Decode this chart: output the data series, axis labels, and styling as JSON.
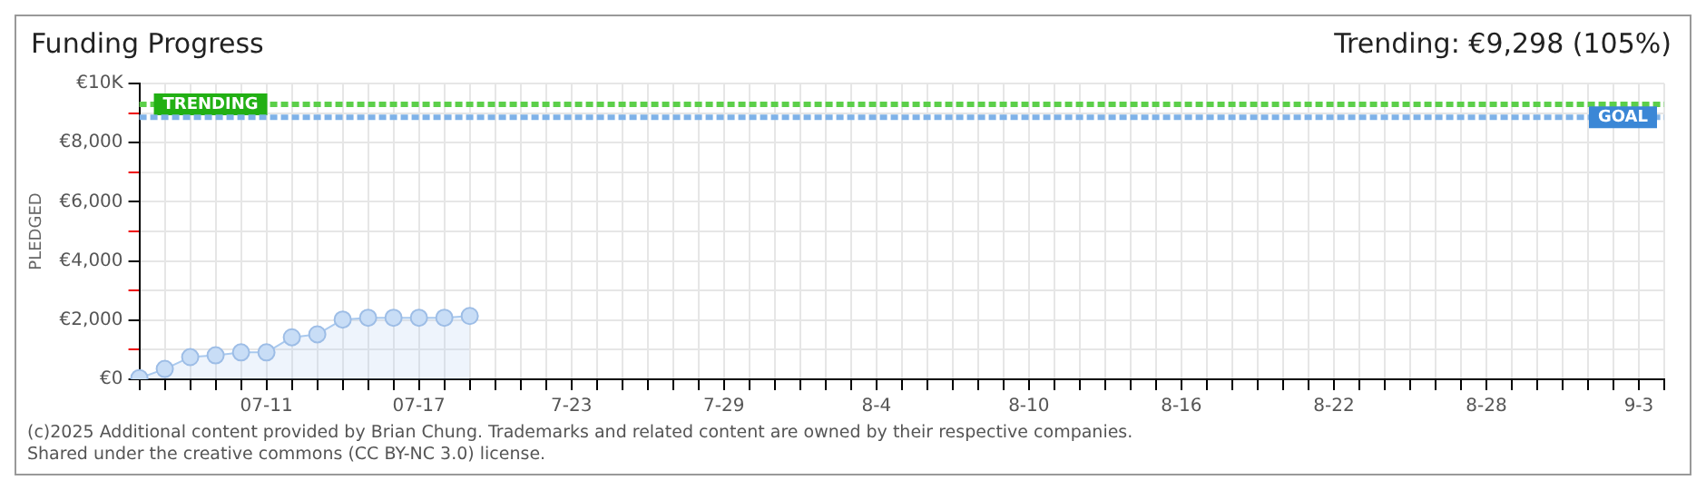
{
  "chart_data": {
    "type": "area",
    "title": "Funding Progress",
    "ylabel": "PLEDGED",
    "annotations": [
      "Trending: €9,298 (105%)",
      "(c)2025 Additional content provided by Brian Chung. Trademarks and related content are owned by their respective companies.",
      "Shared under the creative commons (CC BY-NC 3.0) license."
    ],
    "categories": [
      null,
      null,
      null,
      null,
      null,
      "07-11",
      null,
      null,
      null,
      null,
      null,
      "07-17",
      null,
      null,
      null,
      null,
      null,
      "7-23",
      null,
      null,
      null,
      null,
      null,
      "7-29",
      null,
      null,
      null,
      null,
      null,
      "8-4",
      null,
      null,
      null,
      null,
      null,
      "8-10",
      null,
      null,
      null,
      null,
      null,
      "8-16",
      null,
      null,
      null,
      null,
      null,
      "8-22",
      null,
      null,
      null,
      null,
      null,
      "8-28",
      null,
      null,
      null,
      null,
      null,
      "9-3",
      null
    ],
    "series": [
      {
        "color": "#a9c9ee",
        "values": [
          40,
          350,
          750,
          810,
          910,
          910,
          1420,
          1520,
          2020,
          2080,
          2080,
          2080,
          2080,
          2140,
          null,
          null,
          null,
          null,
          null,
          null,
          null,
          null,
          null,
          null,
          null,
          null,
          null,
          null,
          null,
          null,
          null,
          null,
          null,
          null,
          null,
          null,
          null,
          null,
          null,
          null,
          null,
          null,
          null,
          null,
          null,
          null,
          null,
          null,
          null,
          null,
          null,
          null,
          null,
          null,
          null,
          null,
          null,
          null,
          null,
          null,
          null
        ]
      }
    ],
    "ylim": [
      0,
      10000
    ],
    "yticks": [
      {
        "value": 0,
        "label": "€0"
      },
      {
        "value": 1000,
        "label": null
      },
      {
        "value": 2000,
        "label": "€2,000"
      },
      {
        "value": 3000,
        "label": null
      },
      {
        "value": 4000,
        "label": "€4,000"
      },
      {
        "value": 5000,
        "label": null
      },
      {
        "value": 6000,
        "label": "€6,000"
      },
      {
        "value": 7000,
        "label": null
      },
      {
        "value": 8000,
        "label": "€8,000"
      },
      {
        "value": 9000,
        "label": null
      },
      {
        "value": 10000,
        "label": "€10K"
      }
    ],
    "ref_lines": [
      {
        "axis": "y",
        "value": 9298,
        "label": "TRENDING",
        "color": "#5ccf4a",
        "line_style": "dashed"
      },
      {
        "axis": "y",
        "value": 8860,
        "label": "GOAL",
        "color": "#7fb2e8",
        "line_style": "dashed"
      }
    ],
    "grid": true,
    "legend": false,
    "marker": "circle"
  }
}
